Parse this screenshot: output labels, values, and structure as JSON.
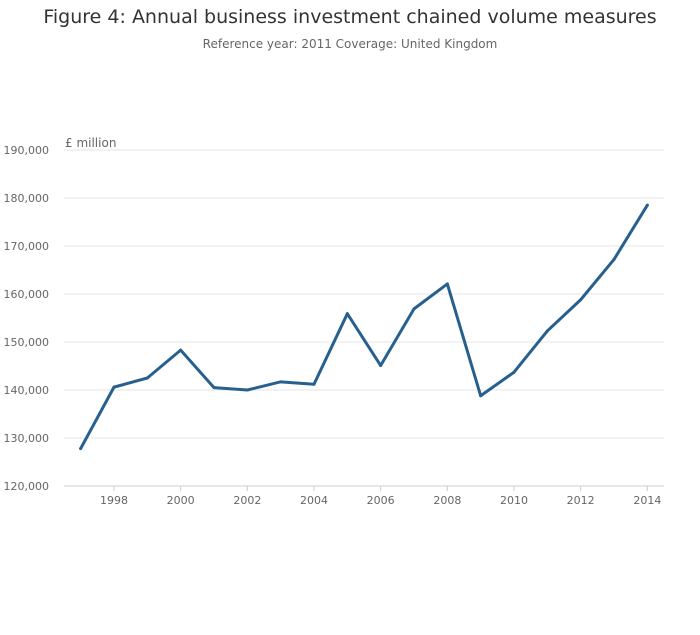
{
  "chart_data": {
    "type": "line",
    "title": "Figure 4: Annual business investment chained volume measures",
    "subtitle": "Reference year: 2011 Coverage: United Kingdom",
    "ylabel": "£ million",
    "xlabel": "",
    "x": [
      1997,
      1998,
      1999,
      2000,
      2001,
      2002,
      2003,
      2004,
      2005,
      2006,
      2007,
      2008,
      2009,
      2010,
      2011,
      2012,
      2013,
      2014
    ],
    "series": [
      {
        "values": [
          127800,
          140600,
          142500,
          148300,
          140500,
          140000,
          141700,
          141200,
          155900,
          145100,
          156900,
          162100,
          138800,
          143700,
          152300,
          158800,
          167200,
          178500
        ]
      }
    ],
    "ylim": [
      120000,
      190000
    ],
    "xlim": [
      1996.5,
      2014.5
    ],
    "y_ticks": [
      120000,
      130000,
      140000,
      150000,
      160000,
      170000,
      180000,
      190000
    ],
    "y_tick_labels": [
      "120,000",
      "130,000",
      "140,000",
      "150,000",
      "160,000",
      "170,000",
      "180,000",
      "190,000"
    ],
    "x_ticks": [
      1998,
      2000,
      2002,
      2004,
      2006,
      2008,
      2010,
      2012,
      2014
    ],
    "x_tick_labels": [
      "1998",
      "2000",
      "2002",
      "2004",
      "2006",
      "2008",
      "2010",
      "2012",
      "2014"
    ],
    "grid": true,
    "legend": "none",
    "colors": {
      "line": "#27608e",
      "grid": "#e6e6e6",
      "axis": "#cccccc",
      "tick_text": "#666666"
    }
  }
}
